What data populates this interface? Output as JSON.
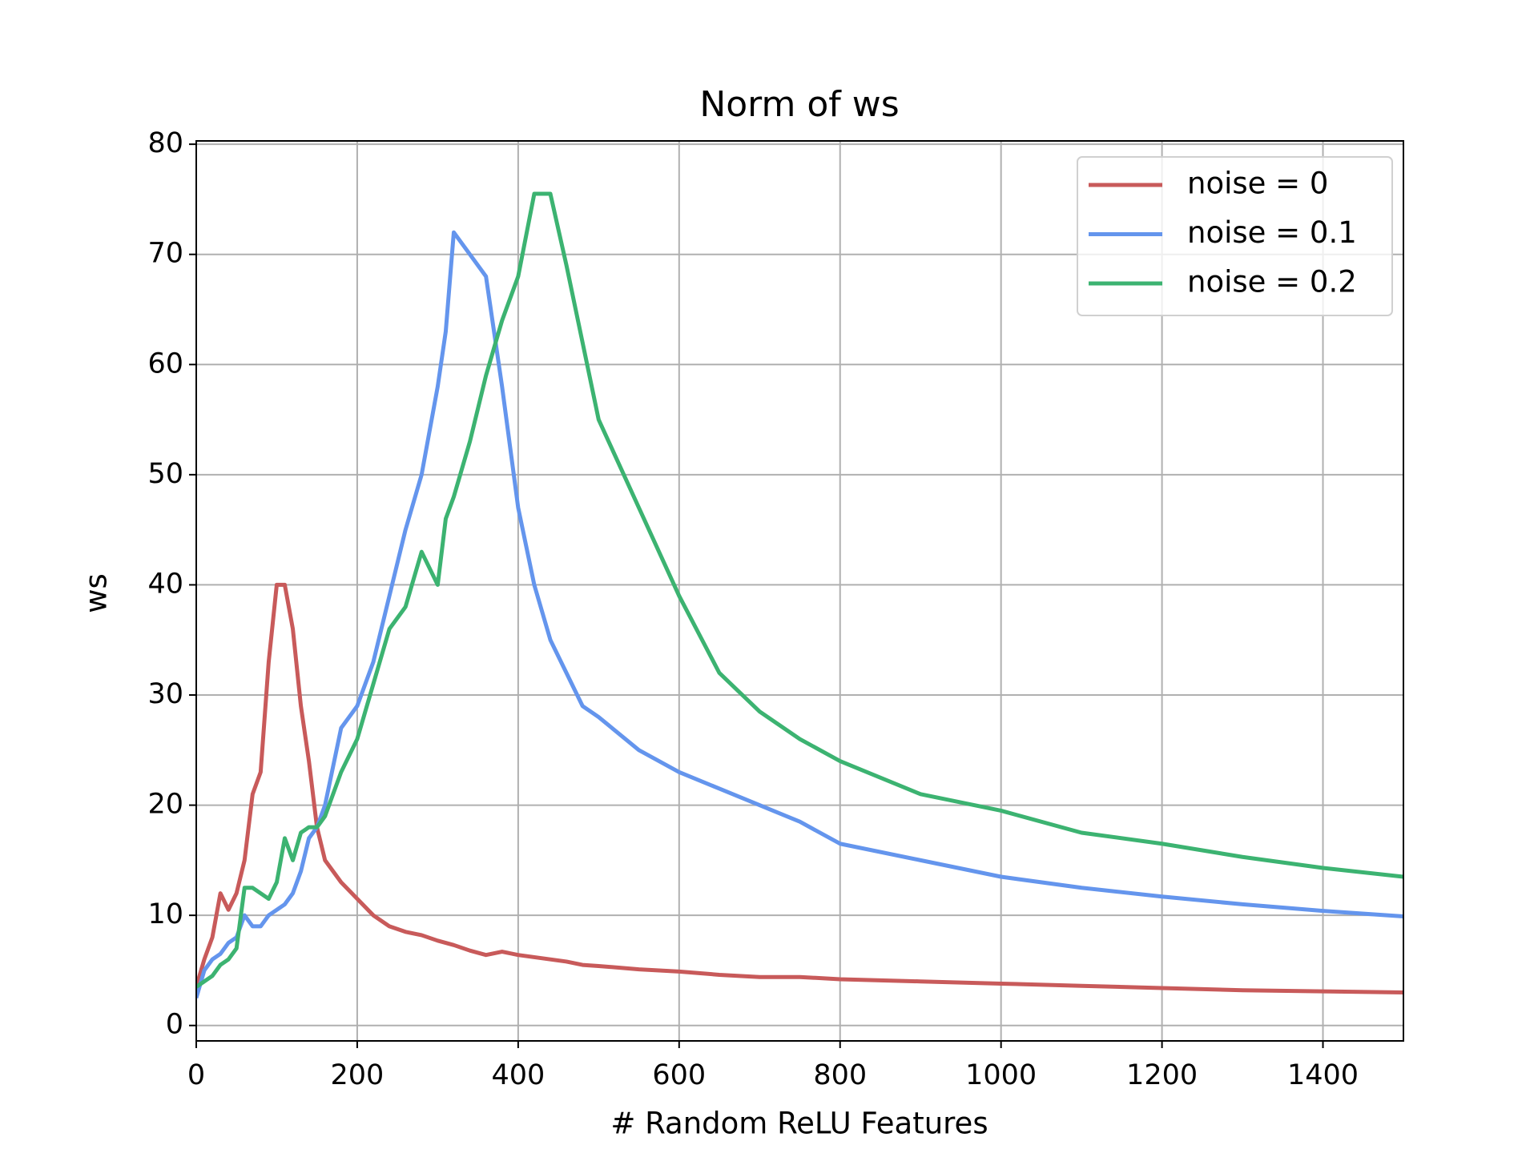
{
  "chart_data": {
    "type": "line",
    "title": "Norm of ws",
    "x_label": "# Random ReLU Features",
    "y_label": "ws",
    "x": [
      0,
      10,
      20,
      30,
      40,
      50,
      60,
      70,
      80,
      90,
      100,
      110,
      120,
      130,
      140,
      150,
      160,
      180,
      200,
      220,
      240,
      260,
      280,
      300,
      310,
      320,
      340,
      360,
      380,
      400,
      420,
      440,
      460,
      480,
      500,
      550,
      600,
      650,
      700,
      750,
      800,
      900,
      1000,
      1100,
      1200,
      1300,
      1400,
      1500
    ],
    "series": [
      {
        "name": "noise = 0",
        "color": "#c85a5a",
        "values": [
          3.5,
          6,
          8,
          12,
          10.5,
          12,
          15,
          21,
          23,
          33,
          40,
          40,
          36,
          29,
          24,
          18,
          15,
          13,
          11.5,
          10,
          9,
          8.5,
          8.2,
          7.7,
          7.5,
          7.3,
          6.8,
          6.4,
          6.7,
          6.4,
          6.2,
          6,
          5.8,
          5.5,
          5.4,
          5.1,
          4.9,
          4.6,
          4.4,
          4.4,
          4.2,
          4.0,
          3.8,
          3.6,
          3.4,
          3.2,
          3.1,
          3.0
        ]
      },
      {
        "name": "noise = 0.1",
        "color": "#6495ed",
        "values": [
          2.5,
          5,
          6,
          6.5,
          7.5,
          8,
          10,
          9,
          9,
          10,
          10.5,
          11,
          12,
          14,
          17,
          18,
          20,
          27,
          29,
          33,
          39,
          45,
          50,
          58,
          63,
          72,
          70,
          68,
          58,
          47,
          40,
          35,
          32,
          29,
          28,
          25,
          23,
          21.5,
          20,
          18.5,
          16.5,
          15,
          13.5,
          12.5,
          11.7,
          11,
          10.4,
          9.9
        ]
      },
      {
        "name": "noise = 0.2",
        "color": "#3cb371",
        "values": [
          3.5,
          4,
          4.5,
          5.5,
          6,
          7,
          12.5,
          12.5,
          12,
          11.5,
          13,
          17,
          15,
          17.5,
          18,
          18,
          19,
          23,
          26,
          31,
          36,
          38,
          43,
          40,
          46,
          48,
          53,
          59,
          64,
          68,
          75.5,
          75.5,
          69,
          62,
          55,
          47,
          39,
          32,
          28.5,
          26,
          24,
          21,
          19.5,
          17.5,
          16.5,
          15.3,
          14.3,
          13.5
        ]
      }
    ],
    "xlim": [
      0,
      1500
    ],
    "ylim": [
      -1.4,
      80.3
    ],
    "xticks": [
      0,
      200,
      400,
      600,
      800,
      1000,
      1200,
      1400
    ],
    "yticks": [
      0,
      10,
      20,
      30,
      40,
      50,
      60,
      70,
      80
    ],
    "grid": true,
    "legend": "upper right"
  }
}
